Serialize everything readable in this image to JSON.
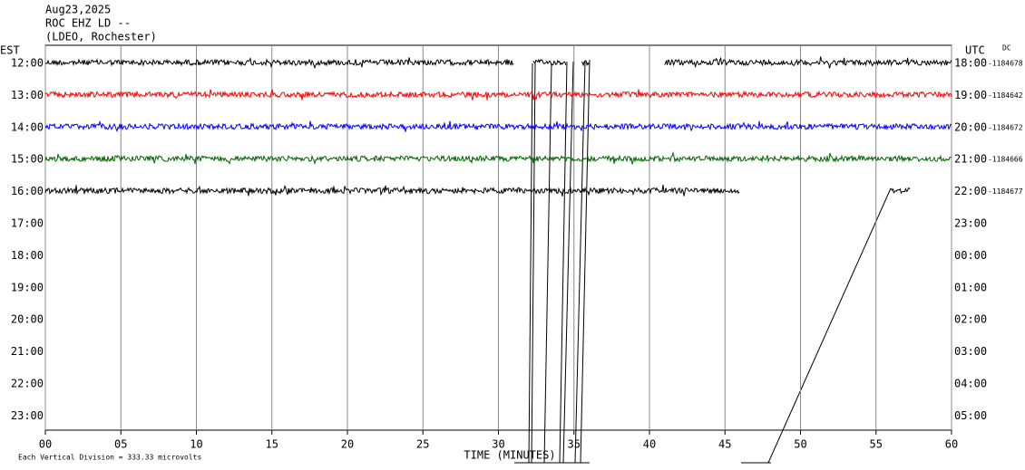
{
  "chart_data": {
    "type": "helicorder",
    "title": "Aug23,2025",
    "subtitle": "ROC EHZ LD --",
    "station": "(LDEO, Rochester)",
    "left_axis_title": "EST",
    "right_axis_title": "UTC",
    "dc_title": "DC",
    "x_label": "TIME (MINUTES)",
    "footnote": "Each Vertical Division =  333.33 microvolts",
    "xlim": [
      0,
      60
    ],
    "xticks": [
      {
        "value": 0,
        "label": "00"
      },
      {
        "value": 5,
        "label": "05"
      },
      10,
      15,
      20,
      25,
      30,
      35,
      40,
      45,
      50,
      55,
      60
    ],
    "rows_left": [
      "12:00",
      "13:00",
      "14:00",
      "15:00",
      "16:00",
      "17:00",
      "18:00",
      "19:00",
      "20:00",
      "21:00",
      "22:00",
      "23:00"
    ],
    "rows_right": [
      "18:00",
      "19:00",
      "20:00",
      "21:00",
      "22:00",
      "23:00",
      "00:00",
      "01:00",
      "02:00",
      "03:00",
      "04:00",
      "05:00"
    ],
    "dc_values": [
      "-1184678",
      "-1184642",
      "-1184672",
      "-1184666",
      "-1184677"
    ],
    "traces": [
      {
        "row": 0,
        "color": "#000000",
        "segments": [
          [
            0,
            31
          ],
          [
            32.3,
            34.5
          ],
          [
            35.5,
            36
          ],
          [
            41,
            60
          ]
        ]
      },
      {
        "row": 1,
        "color": "#ff0000",
        "segments": [
          [
            0,
            60
          ]
        ]
      },
      {
        "row": 2,
        "color": "#0000ff",
        "segments": [
          [
            0,
            60
          ]
        ]
      },
      {
        "row": 3,
        "color": "#006400",
        "segments": [
          [
            0,
            60
          ]
        ]
      },
      {
        "row": 4,
        "color": "#000000",
        "segments": [
          [
            0,
            46
          ],
          [
            56,
            57.3
          ]
        ]
      }
    ]
  }
}
